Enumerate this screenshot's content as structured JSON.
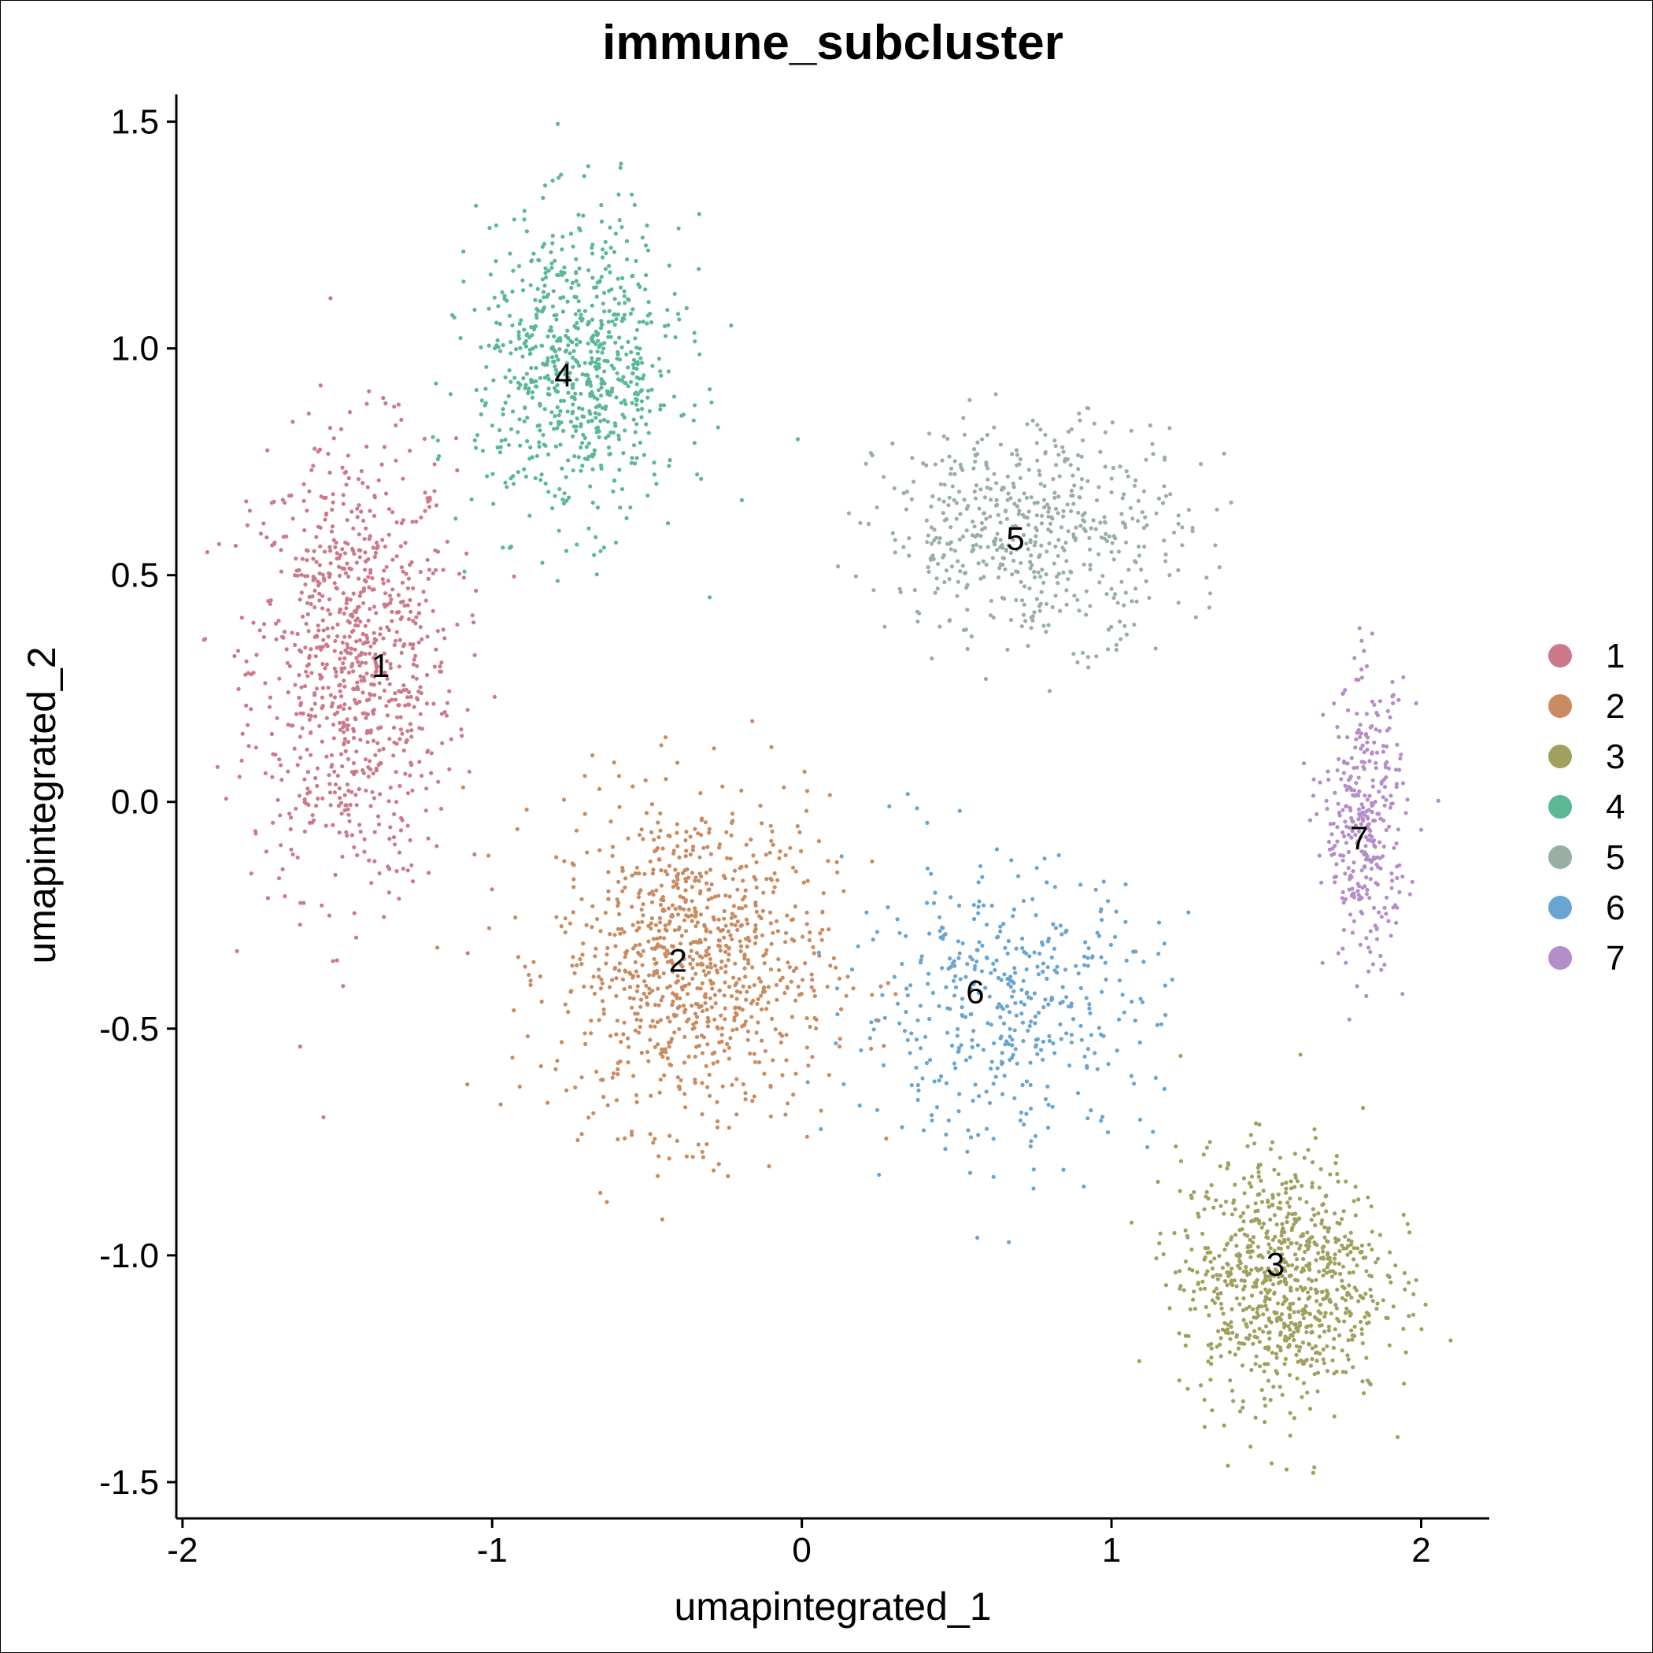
{
  "chart_data": {
    "type": "scatter",
    "title": "immune_subcluster",
    "xlabel": "umapintegrated_1",
    "ylabel": "umapintegrated_2",
    "xlim": [
      -2.02,
      2.22
    ],
    "ylim": [
      -1.58,
      1.56
    ],
    "xticks": [
      -2,
      -1,
      0,
      1,
      2
    ],
    "xtick_labels": [
      "-2",
      "-1",
      "0",
      "1",
      "2"
    ],
    "yticks": [
      -1.5,
      -1.0,
      -0.5,
      0.0,
      0.5,
      1.0,
      1.5
    ],
    "ytick_labels": [
      "-1.5",
      "-1.0",
      "-0.5",
      "0.0",
      "0.5",
      "1.0",
      "1.5"
    ],
    "grid": false,
    "legend_position": "right",
    "series": [
      {
        "name": "1",
        "color": "#CC7A8B",
        "label_x": -1.36,
        "label_y": 0.3,
        "center_x": -1.45,
        "center_y": 0.3,
        "spread_x": 0.3,
        "spread_y": 0.45,
        "n": 900
      },
      {
        "name": "2",
        "color": "#C98B61",
        "label_x": -0.4,
        "label_y": -0.35,
        "center_x": -0.35,
        "center_y": -0.35,
        "spread_x": 0.4,
        "spread_y": 0.33,
        "n": 950
      },
      {
        "name": "3",
        "color": "#A0A05F",
        "label_x": 1.53,
        "label_y": -1.02,
        "center_x": 1.55,
        "center_y": -1.05,
        "spread_x": 0.3,
        "spread_y": 0.25,
        "n": 850
      },
      {
        "name": "4",
        "color": "#5BB896",
        "label_x": -0.77,
        "label_y": 0.94,
        "center_x": -0.72,
        "center_y": 0.95,
        "spread_x": 0.3,
        "spread_y": 0.3,
        "n": 750
      },
      {
        "name": "5",
        "color": "#9AAFA3",
        "label_x": 0.69,
        "label_y": 0.58,
        "center_x": 0.75,
        "center_y": 0.6,
        "spread_x": 0.45,
        "spread_y": 0.22,
        "n": 550
      },
      {
        "name": "6",
        "color": "#6AA5D1",
        "label_x": 0.56,
        "label_y": -0.42,
        "center_x": 0.65,
        "center_y": -0.45,
        "spread_x": 0.45,
        "spread_y": 0.28,
        "n": 450
      },
      {
        "name": "7",
        "color": "#B58DC9",
        "label_x": 1.8,
        "label_y": -0.08,
        "center_x": 1.82,
        "center_y": -0.05,
        "spread_x": 0.12,
        "spread_y": 0.28,
        "n": 350
      }
    ]
  }
}
